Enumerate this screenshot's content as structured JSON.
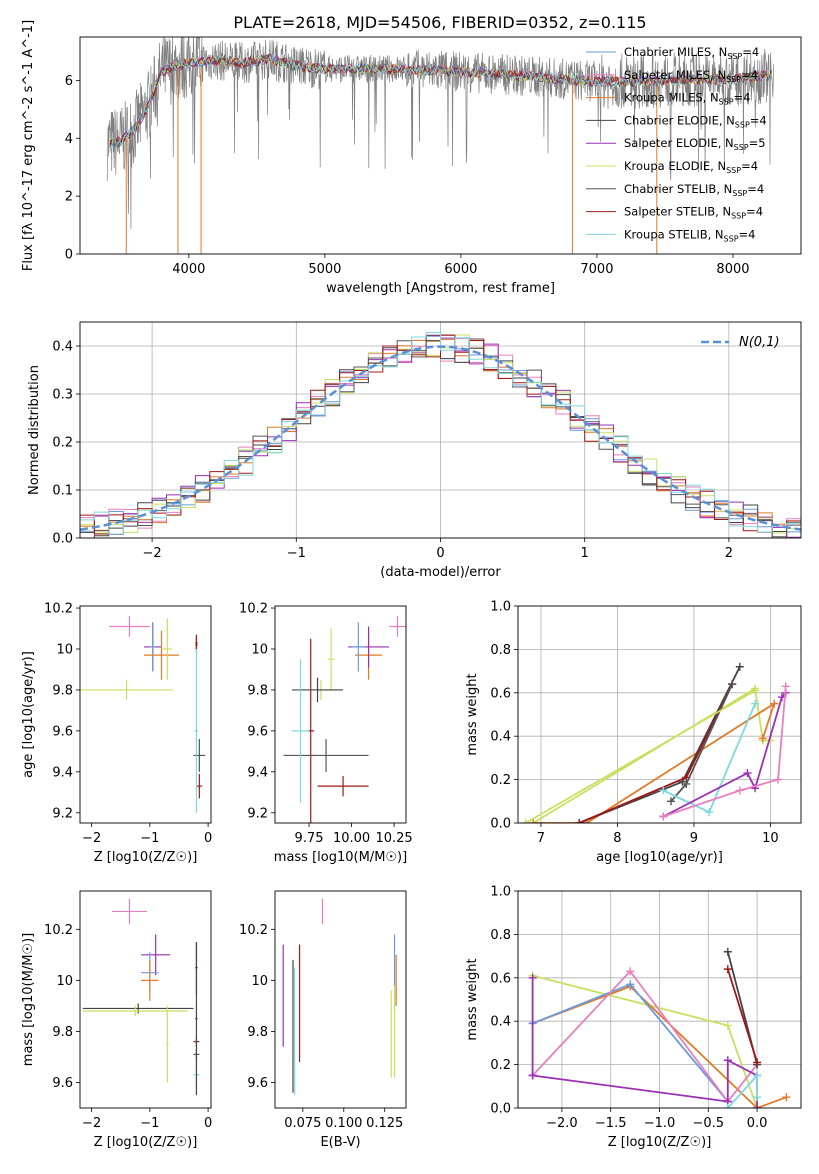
{
  "title": "PLATE=2618, MJD=54506, FIBERID=0352, z=0.115",
  "colors": {
    "chabrier_miles": "#6a9ae0",
    "salpeter_miles": "#e87fbf",
    "kroupa_miles": "#e07b27",
    "chabrier_elodie": "#444444",
    "salpeter_elodie": "#9b2fb5",
    "kroupa_elodie": "#c8e060",
    "chabrier_stelib": "#555555",
    "salpeter_stelib": "#a01818",
    "kroupa_stelib": "#7fd8e0",
    "data": "#808080",
    "gaussian": "#5b8fd6"
  },
  "legend_labels": [
    "Chabrier MILES, N_SSP=4",
    "Salpeter MILES, N_SSP=4",
    "Kroupa MILES, N_SSP=4",
    "Chabrier ELODIE, N_SSP=4",
    "Salpeter ELODIE, N_SSP=5",
    "Kroupa ELODIE, N_SSP=4",
    "Chabrier STELIB, N_SSP=4",
    "Salpeter STELIB, N_SSP=4",
    "Kroupa STELIB, N_SSP=4"
  ],
  "chart_data": [
    {
      "id": "spectrum",
      "type": "line",
      "xlabel": "wavelength [Angstrom, rest frame]",
      "ylabel": "Flux [fλ 10^-17 erg cm^-2 s^-1 A^-1]",
      "xlim": [
        3200,
        8500
      ],
      "ylim": [
        0,
        7.5
      ],
      "xticks": [
        4000,
        5000,
        6000,
        7000,
        8000
      ],
      "yticks": [
        0,
        2,
        4,
        6
      ],
      "continuum": {
        "x": [
          3400,
          3500,
          3600,
          3700,
          3800,
          3900,
          4000,
          4200,
          4400,
          4600,
          4800,
          5000,
          5500,
          6000,
          6500,
          7000,
          7500,
          8000,
          8300
        ],
        "y": [
          3.8,
          3.9,
          4.3,
          5.1,
          6.3,
          6.5,
          6.6,
          6.7,
          6.6,
          6.75,
          6.5,
          6.4,
          6.4,
          6.3,
          6.15,
          5.95,
          6.0,
          6.05,
          6.2
        ]
      },
      "spikes_down": [
        3540,
        3920,
        4090,
        6820,
        7440
      ],
      "legend_position": "upper right"
    },
    {
      "id": "residuals",
      "type": "histogram",
      "xlabel": "(data-model)/error",
      "ylabel": "Normed distribution",
      "xlim": [
        -2.5,
        2.5
      ],
      "ylim": [
        0,
        0.45
      ],
      "xticks": [
        -2,
        -1,
        0,
        1,
        2
      ],
      "yticks": [
        0.0,
        0.1,
        0.2,
        0.3,
        0.4
      ],
      "grid": true,
      "bin_width": 0.1,
      "gaussian_label": "N(0,1)",
      "legend_position": "upper right"
    },
    {
      "id": "age_vs_Z",
      "type": "errorbar",
      "xlabel": "Z [log10(Z/Z☉)]",
      "ylabel": "age  [log10(age/yr)]",
      "xlim": [
        -2.2,
        0.05
      ],
      "ylim": [
        9.15,
        10.21
      ],
      "xticks": [
        -2,
        -1,
        0
      ],
      "yticks": [
        9.2,
        9.4,
        9.6,
        9.8,
        10.0,
        10.2
      ],
      "points": [
        {
          "model": "salpeter_miles",
          "x": -1.35,
          "y": 10.11,
          "xerr": 0.35,
          "yerr": 0.05
        },
        {
          "model": "salpeter_elodie",
          "x": -0.95,
          "y": 10.01,
          "xerr": 0.15,
          "yerr": 0.12
        },
        {
          "model": "chabrier_miles",
          "x": -0.95,
          "y": 10.01,
          "xerr": 0.05,
          "yerr": 0.12
        },
        {
          "model": "kroupa_miles",
          "x": -0.8,
          "y": 9.97,
          "xerr": 0.3,
          "yerr": 0.12
        },
        {
          "model": "kroupa_elodie",
          "x": -0.7,
          "y": 10.0,
          "xerr": 0.08,
          "yerr": 0.15
        },
        {
          "model": "chabrier_elodie",
          "x": -0.2,
          "y": 10.02,
          "xerr": 0.02,
          "yerr": 0.04
        },
        {
          "model": "salpeter_stelib",
          "x": -0.2,
          "y": 10.03,
          "xerr": 0.02,
          "yerr": 0.04
        },
        {
          "model": "kroupa_elodie",
          "x": -1.4,
          "y": 9.8,
          "xerr": 0.8,
          "yerr": 0.05
        },
        {
          "model": "chabrier_stelib",
          "x": -0.15,
          "y": 9.48,
          "xerr": 0.1,
          "yerr": 0.08
        },
        {
          "model": "salpeter_stelib",
          "x": -0.15,
          "y": 9.33,
          "xerr": 0.05,
          "yerr": 0.06
        },
        {
          "model": "kroupa_stelib",
          "x": -0.2,
          "y": 9.6,
          "xerr": 0.03,
          "yerr": 0.4
        }
      ]
    },
    {
      "id": "age_vs_mass",
      "type": "errorbar",
      "xlabel": "mass [log10(M/M☉)]",
      "ylabel": "",
      "xlim": [
        9.55,
        10.32
      ],
      "ylim": [
        9.15,
        10.21
      ],
      "xticks": [
        9.75,
        10.0,
        10.25
      ],
      "xticklabels": [
        "9.75",
        "10.00",
        "10.25"
      ],
      "yticks": [
        9.2,
        9.4,
        9.6,
        9.8,
        10.0,
        10.2
      ],
      "points": [
        {
          "model": "salpeter_miles",
          "x": 10.27,
          "y": 10.11,
          "xerr": 0.05,
          "yerr": 0.05
        },
        {
          "model": "kroupa_miles",
          "x": 10.1,
          "y": 9.97,
          "xerr": 0.08,
          "yerr": 0.12
        },
        {
          "model": "salpeter_elodie",
          "x": 10.1,
          "y": 10.01,
          "xerr": 0.12,
          "yerr": 0.1
        },
        {
          "model": "chabrier_miles",
          "x": 10.04,
          "y": 10.01,
          "xerr": 0.04,
          "yerr": 0.12
        },
        {
          "model": "kroupa_elodie",
          "x": 9.88,
          "y": 9.95,
          "xerr": 0.02,
          "yerr": 0.15
        },
        {
          "model": "kroupa_elodie",
          "x": 9.82,
          "y": 9.8,
          "xerr": 0.12,
          "yerr": 0.05
        },
        {
          "model": "chabrier_elodie",
          "x": 9.8,
          "y": 9.8,
          "xerr": 0.15,
          "yerr": 0.06
        },
        {
          "model": "salpeter_stelib",
          "x": 9.76,
          "y": 9.6,
          "xerr": 0.02,
          "yerr": 0.45
        },
        {
          "model": "chabrier_stelib",
          "x": 9.85,
          "y": 9.48,
          "xerr": 0.25,
          "yerr": 0.08
        },
        {
          "model": "salpeter_stelib",
          "x": 9.95,
          "y": 9.33,
          "xerr": 0.15,
          "yerr": 0.05
        },
        {
          "model": "kroupa_stelib",
          "x": 9.7,
          "y": 9.6,
          "xerr": 0.05,
          "yerr": 0.35
        }
      ]
    },
    {
      "id": "mass_weight_vs_age",
      "type": "line",
      "xlabel": "age  [log10(age/yr)]",
      "ylabel": "mass weight",
      "xlim": [
        6.7,
        10.4
      ],
      "ylim": [
        0,
        1.0
      ],
      "xticks": [
        7,
        8,
        9,
        10
      ],
      "yticks": [
        0.0,
        0.2,
        0.4,
        0.6,
        0.8,
        1.0
      ],
      "grid": true,
      "series": [
        {
          "model": "kroupa_elodie",
          "x": [
            6.9,
            9.8,
            9.9,
            10.0
          ],
          "y": [
            0.0,
            0.62,
            0.38,
            0.38
          ]
        },
        {
          "model": "kroupa_miles",
          "x": [
            6.9,
            7.6,
            10.05,
            9.9
          ],
          "y": [
            0.0,
            0.0,
            0.55,
            0.39
          ]
        },
        {
          "model": "chabrier_elodie",
          "x": [
            7.5,
            8.85,
            9.6
          ],
          "y": [
            0.0,
            0.19,
            0.72
          ]
        },
        {
          "model": "salpeter_stelib",
          "x": [
            7.5,
            8.9,
            9.5
          ],
          "y": [
            0.0,
            0.21,
            0.64
          ]
        },
        {
          "model": "chabrier_stelib",
          "x": [
            8.7,
            8.9,
            9.5
          ],
          "y": [
            0.1,
            0.18,
            0.64
          ]
        },
        {
          "model": "kroupa_stelib",
          "x": [
            8.6,
            9.2,
            9.8
          ],
          "y": [
            0.15,
            0.05,
            0.55
          ]
        },
        {
          "model": "salpeter_elodie",
          "x": [
            8.6,
            9.7,
            9.8,
            10.15,
            10.2
          ],
          "y": [
            0.03,
            0.23,
            0.16,
            0.58,
            0.6
          ]
        },
        {
          "model": "salpeter_miles",
          "x": [
            8.6,
            9.6,
            10.1,
            10.2
          ],
          "y": [
            0.03,
            0.15,
            0.2,
            0.63
          ]
        },
        {
          "model": "kroupa_elodie",
          "x": [
            6.8,
            9.8
          ],
          "y": [
            0.0,
            0.61
          ]
        }
      ]
    },
    {
      "id": "mass_vs_Z",
      "type": "errorbar",
      "xlabel": "Z [log10(Z/Z☉)]",
      "ylabel": "mass [log10(M/M☉)]",
      "xlim": [
        -2.2,
        0.05
      ],
      "ylim": [
        9.5,
        10.35
      ],
      "xticks": [
        -2,
        -1,
        0
      ],
      "yticks": [
        9.6,
        9.8,
        10.0,
        10.2
      ],
      "points": [
        {
          "model": "salpeter_miles",
          "x": -1.35,
          "y": 10.27,
          "xerr": 0.3,
          "yerr": 0.05
        },
        {
          "model": "salpeter_elodie",
          "x": -0.9,
          "y": 10.1,
          "xerr": 0.25,
          "yerr": 0.08
        },
        {
          "model": "chabrier_miles",
          "x": -1.0,
          "y": 10.03,
          "xerr": 0.15,
          "yerr": 0.08
        },
        {
          "model": "kroupa_miles",
          "x": -1.0,
          "y": 10.0,
          "xerr": 0.15,
          "yerr": 0.08
        },
        {
          "model": "chabrier_elodie",
          "x": -1.2,
          "y": 9.89,
          "xerr": 0.95,
          "yerr": 0.02
        },
        {
          "model": "kroupa_elodie",
          "x": -1.25,
          "y": 9.88,
          "xerr": 0.9,
          "yerr": 0.02
        },
        {
          "model": "kroupa_elodie",
          "x": -0.7,
          "y": 9.75,
          "xerr": 0.02,
          "yerr": 0.15
        },
        {
          "model": "salpeter_stelib",
          "x": -0.2,
          "y": 10.05,
          "xerr": 0.02,
          "yerr": 0.1
        },
        {
          "model": "salpeter_stelib",
          "x": -0.2,
          "y": 9.76,
          "xerr": 0.05,
          "yerr": 0.02
        },
        {
          "model": "chabrier_stelib",
          "x": -0.2,
          "y": 9.71,
          "xerr": 0.05,
          "yerr": 0.02
        },
        {
          "model": "kroupa_stelib",
          "x": -0.2,
          "y": 9.63,
          "xerr": 0.05,
          "yerr": 0.05
        },
        {
          "model": "chabrier_elodie",
          "x": -0.2,
          "y": 9.85,
          "xerr": 0.02,
          "yerr": 0.3
        }
      ]
    },
    {
      "id": "mass_vs_ebv",
      "type": "errorbar",
      "xlabel": "E(B-V)",
      "ylabel": "",
      "xlim": [
        0.058,
        0.138
      ],
      "ylim": [
        9.5,
        10.35
      ],
      "xticks": [
        0.075,
        0.1,
        0.125
      ],
      "xticklabels": [
        "0.075",
        "0.100",
        "0.125"
      ],
      "yticks": [
        9.6,
        9.8,
        10.0,
        10.2
      ],
      "points": [
        {
          "model": "salpeter_miles",
          "x": 0.087,
          "y": 10.27,
          "xerr": 0.0,
          "yerr": 0.05
        },
        {
          "model": "salpeter_elodie",
          "x": 0.063,
          "y": 9.94,
          "xerr": 0.0,
          "yerr": 0.2
        },
        {
          "model": "chabrier_elodie",
          "x": 0.069,
          "y": 9.82,
          "xerr": 0.0,
          "yerr": 0.26
        },
        {
          "model": "kroupa_stelib",
          "x": 0.07,
          "y": 9.8,
          "xerr": 0.0,
          "yerr": 0.25
        },
        {
          "model": "salpeter_stelib",
          "x": 0.073,
          "y": 9.91,
          "xerr": 0.0,
          "yerr": 0.23
        },
        {
          "model": "kroupa_elodie",
          "x": 0.129,
          "y": 9.79,
          "xerr": 0.0,
          "yerr": 0.17
        },
        {
          "model": "chabrier_miles",
          "x": 0.131,
          "y": 10.03,
          "xerr": 0.0,
          "yerr": 0.15
        },
        {
          "model": "kroupa_miles",
          "x": 0.132,
          "y": 10.0,
          "xerr": 0.0,
          "yerr": 0.1
        },
        {
          "model": "kroupa_elodie",
          "x": 0.131,
          "y": 9.8,
          "xerr": 0.0,
          "yerr": 0.18
        }
      ]
    },
    {
      "id": "mass_weight_vs_Z",
      "type": "line",
      "xlabel": "Z [log10(Z/Z☉)]",
      "ylabel": "mass weight",
      "xlim": [
        -2.45,
        0.45
      ],
      "ylim": [
        0,
        1.0
      ],
      "xticks": [
        -2.0,
        -1.5,
        -1.0,
        -0.5,
        0.0
      ],
      "xticklabels": [
        "−2.0",
        "−1.5",
        "−1.0",
        "−0.5",
        "0.0"
      ],
      "yticks": [
        0.0,
        0.2,
        0.4,
        0.6,
        0.8,
        1.0
      ],
      "grid": true,
      "series": [
        {
          "model": "kroupa_elodie",
          "x": [
            -2.3,
            -0.3,
            0.0
          ],
          "y": [
            0.61,
            0.38,
            0.0
          ]
        },
        {
          "model": "kroupa_miles",
          "x": [
            -2.3,
            -1.3,
            0.0,
            0.3
          ],
          "y": [
            0.39,
            0.56,
            0.0,
            0.05
          ]
        },
        {
          "model": "chabrier_miles",
          "x": [
            -2.3,
            -1.3,
            -0.3
          ],
          "y": [
            0.39,
            0.57,
            0.03
          ]
        },
        {
          "model": "salpeter_miles",
          "x": [
            -2.3,
            -1.3,
            -0.3,
            0.0
          ],
          "y": [
            0.15,
            0.63,
            0.03,
            0.2
          ]
        },
        {
          "model": "salpeter_elodie",
          "x": [
            -2.3,
            -0.3,
            -0.3,
            0.0,
            0.0
          ],
          "y": [
            0.15,
            0.03,
            0.22,
            0.15,
            0.0
          ]
        },
        {
          "model": "chabrier_elodie",
          "x": [
            -0.3,
            0.0
          ],
          "y": [
            0.72,
            0.2
          ]
        },
        {
          "model": "salpeter_stelib",
          "x": [
            -0.3,
            0.0
          ],
          "y": [
            0.64,
            0.21
          ]
        },
        {
          "model": "kroupa_stelib",
          "x": [
            -0.3,
            0.0,
            0.0
          ],
          "y": [
            0.0,
            0.15,
            0.05
          ]
        },
        {
          "model": "salpeter_elodie",
          "x": [
            -2.3,
            -2.3
          ],
          "y": [
            0.15,
            0.6
          ]
        }
      ]
    }
  ]
}
